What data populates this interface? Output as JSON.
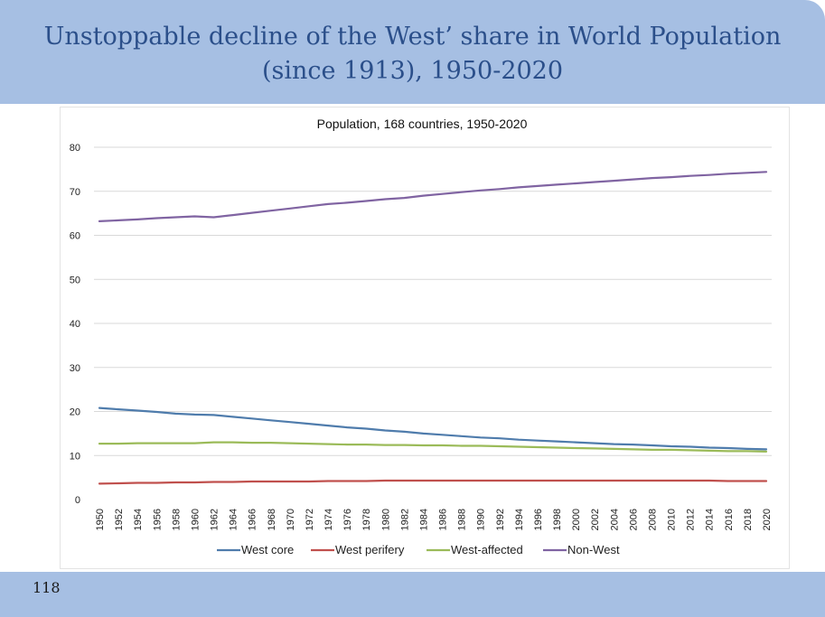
{
  "slide": {
    "title_line1": "Unstoppable decline of the West’ share in World Population",
    "title_line2": "(since 1913), 1950-2020",
    "page_number": "118"
  },
  "colors": {
    "header_band": "#a6bfe3",
    "title_text": "#2b4f8a"
  },
  "chart_data": {
    "type": "line",
    "title": "Population, 168 countries, 1950-2020",
    "xlabel": "",
    "ylabel": "",
    "ylim": [
      0,
      80
    ],
    "yticks": [
      0,
      10,
      20,
      30,
      40,
      50,
      60,
      70,
      80
    ],
    "grid": true,
    "legend_position": "bottom",
    "x": [
      1950,
      1952,
      1954,
      1956,
      1958,
      1960,
      1962,
      1964,
      1966,
      1968,
      1970,
      1972,
      1974,
      1976,
      1978,
      1980,
      1982,
      1984,
      1986,
      1988,
      1990,
      1992,
      1994,
      1996,
      1998,
      2000,
      2002,
      2004,
      2006,
      2008,
      2010,
      2012,
      2014,
      2016,
      2018,
      2020
    ],
    "series": [
      {
        "name": "West core",
        "color": "#4f7cac",
        "values": [
          20.8,
          20.5,
          20.2,
          19.9,
          19.5,
          19.3,
          19.2,
          18.8,
          18.4,
          18.0,
          17.6,
          17.2,
          16.8,
          16.4,
          16.1,
          15.7,
          15.4,
          15.0,
          14.7,
          14.4,
          14.1,
          13.9,
          13.6,
          13.4,
          13.2,
          13.0,
          12.8,
          12.6,
          12.5,
          12.3,
          12.1,
          12.0,
          11.8,
          11.7,
          11.5,
          11.4
        ]
      },
      {
        "name": "West perifery",
        "color": "#c0504d",
        "values": [
          3.6,
          3.7,
          3.8,
          3.8,
          3.9,
          3.9,
          4.0,
          4.0,
          4.1,
          4.1,
          4.1,
          4.1,
          4.2,
          4.2,
          4.2,
          4.3,
          4.3,
          4.3,
          4.3,
          4.3,
          4.3,
          4.3,
          4.3,
          4.3,
          4.3,
          4.3,
          4.3,
          4.3,
          4.3,
          4.3,
          4.3,
          4.3,
          4.3,
          4.2,
          4.2,
          4.2
        ]
      },
      {
        "name": "West-affected",
        "color": "#9bbb59",
        "values": [
          12.7,
          12.7,
          12.8,
          12.8,
          12.8,
          12.8,
          13.0,
          13.0,
          12.9,
          12.9,
          12.8,
          12.7,
          12.6,
          12.5,
          12.5,
          12.4,
          12.4,
          12.3,
          12.3,
          12.2,
          12.2,
          12.1,
          12.0,
          11.9,
          11.8,
          11.7,
          11.6,
          11.5,
          11.4,
          11.3,
          11.3,
          11.2,
          11.1,
          11.0,
          11.0,
          10.9
        ]
      },
      {
        "name": "Non-West",
        "color": "#8064a2",
        "values": [
          63.2,
          63.4,
          63.6,
          63.9,
          64.1,
          64.3,
          64.1,
          64.6,
          65.1,
          65.6,
          66.1,
          66.6,
          67.1,
          67.4,
          67.8,
          68.2,
          68.5,
          69.0,
          69.4,
          69.8,
          70.2,
          70.5,
          70.9,
          71.2,
          71.5,
          71.8,
          72.1,
          72.4,
          72.7,
          73.0,
          73.2,
          73.5,
          73.7,
          74.0,
          74.2,
          74.4
        ]
      }
    ]
  }
}
